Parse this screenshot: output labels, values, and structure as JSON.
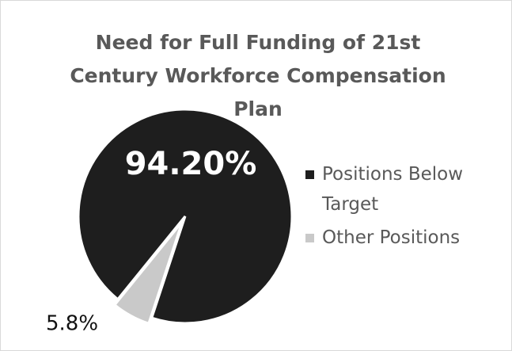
{
  "chart_data": {
    "type": "pie",
    "title": "Need for Full Funding of 21st Century Workforce Compensation Plan",
    "categories": [
      "Positions Below Target",
      "Other Positions"
    ],
    "values": [
      94.2,
      5.8
    ],
    "value_labels": [
      "94.20%",
      "5.8%"
    ],
    "colors": [
      "#1e1e1e",
      "#c9c9c9"
    ],
    "legend": "right"
  }
}
